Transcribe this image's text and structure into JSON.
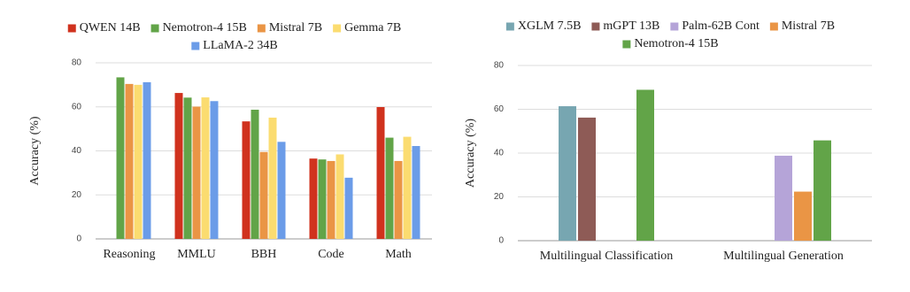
{
  "chart_data": [
    {
      "type": "bar",
      "y_label": "Accuracy (%)",
      "categories": [
        "Reasoning",
        "MMLU",
        "BBH",
        "Code",
        "Math"
      ],
      "series": [
        {
          "name": "QWEN 14B",
          "color": "#d0321e",
          "values": [
            null,
            66.3,
            53.4,
            36.5,
            59.9
          ]
        },
        {
          "name": "Nemotron-4 15B",
          "color": "#62a448",
          "values": [
            73.4,
            64.2,
            58.7,
            36.1,
            46.0
          ]
        },
        {
          "name": "Mistral 7B",
          "color": "#ea9545",
          "values": [
            70.4,
            60.1,
            39.5,
            35.4,
            35.4
          ]
        },
        {
          "name": "Gemma 7B",
          "color": "#fbdc70",
          "values": [
            70.0,
            64.3,
            55.1,
            38.4,
            46.4
          ]
        },
        {
          "name": "LLaMA-2 34B",
          "color": "#6b9ce8",
          "values": [
            71.2,
            62.6,
            44.1,
            27.8,
            42.2
          ]
        }
      ],
      "ylim": [
        0,
        80
      ],
      "yticks": [
        0,
        20,
        40,
        60,
        80
      ],
      "grid": true
    },
    {
      "type": "bar",
      "y_label": "Accuracy (%)",
      "categories": [
        "Multilingual Classification",
        "Multilingual Generation"
      ],
      "series": [
        {
          "name": "XGLM 7.5B",
          "color": "#77a6b1",
          "values": [
            61.4,
            null
          ]
        },
        {
          "name": "mGPT 13B",
          "color": "#8e5b56",
          "values": [
            56.2,
            null
          ]
        },
        {
          "name": "Palm-62B Cont",
          "color": "#b5a4d8",
          "values": [
            null,
            38.8
          ]
        },
        {
          "name": "Mistral 7B",
          "color": "#ea9545",
          "values": [
            null,
            22.4
          ]
        },
        {
          "name": "Nemotron-4 15B",
          "color": "#62a448",
          "values": [
            68.9,
            45.8
          ]
        }
      ],
      "ylim": [
        0,
        80
      ],
      "yticks": [
        0,
        20,
        40,
        60,
        80
      ],
      "grid": true
    }
  ]
}
